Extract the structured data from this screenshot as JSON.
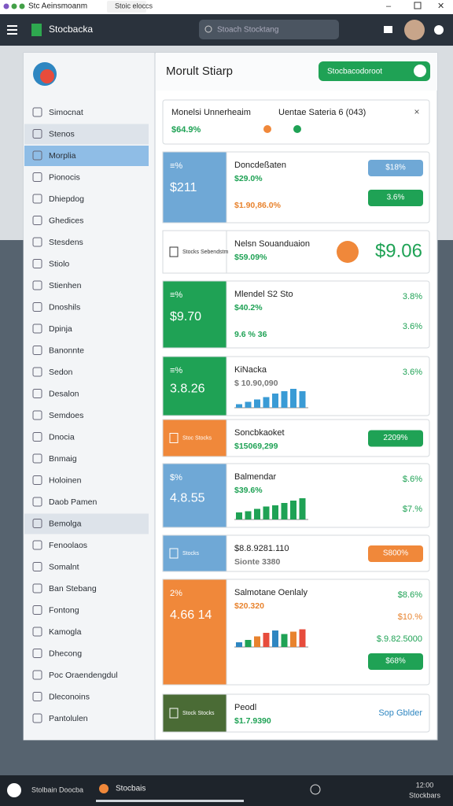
{
  "window": {
    "title": "Stc Aeinsmoanm",
    "tab": "Stoic eloccs"
  },
  "header": {
    "app_name": "Stocbacka",
    "search": "Stoach Stocktang"
  },
  "sidebar": {
    "items": [
      "Simocnat",
      "Stenos",
      "Morplia",
      "Pionocis",
      "Dhiepdog",
      "Ghedices",
      "Stesdens",
      "Stiolo",
      "Stienhen",
      "Dnoshils",
      "Dpinja",
      "Banonnte",
      "Sedon",
      "Desalon",
      "Semdoes",
      "Dnocia",
      "Bnmaig",
      "Holoinen",
      "Daob Pamen",
      "Bemolga",
      "Fenoolaos",
      "Somalnt",
      "Ban Stebang",
      "Fontong",
      "Kamogla",
      "Dhecong",
      "Poc Oraendengdul",
      "Dleconoins",
      "Pantolulen"
    ]
  },
  "panel": {
    "title": "Morult Stiarp",
    "button": "Stocbacodoroot"
  },
  "notice": {
    "title": "Monelsi Unnerheaim",
    "value": "$64.9%",
    "detail": "Uentae Sateria 6 (043)",
    "close": "×"
  },
  "cards": [
    {
      "accent": "#6fa8d6",
      "left": [
        "≡%",
        "$211"
      ],
      "title": "Doncdeßaten",
      "lines": [
        {
          "text": "$29.0%",
          "tone": "green"
        },
        {
          "text": "$1.90,86.0%",
          "tone": "orange"
        }
      ],
      "right": [
        {
          "text": "$18%",
          "style": "pill-blue"
        },
        {
          "text": "3.6%",
          "style": "pill-green"
        }
      ]
    },
    {
      "accent": "#ffffff",
      "left": [
        "Stocks Sebendstm"
      ],
      "title": "Nelsn Souanduaion",
      "lines": [
        {
          "text": "$59.09%",
          "tone": "green"
        }
      ],
      "right": [
        {
          "text": "$9.06",
          "style": "big"
        }
      ]
    },
    {
      "accent": "#1fa255",
      "left": [
        "≡%",
        "$9.70"
      ],
      "title": "Mlendel S2 Sto",
      "lines": [
        {
          "text": "$40.2%",
          "tone": "green"
        },
        {
          "text": "9.6 % 36",
          "tone": "green"
        }
      ],
      "right": [
        {
          "text": "3.8%",
          "style": "green"
        },
        {
          "text": "3.6%",
          "style": "green"
        }
      ]
    },
    {
      "accent": "#1fa255",
      "left": [
        "≡%",
        "3.8.26"
      ],
      "title": "KiNacka",
      "lines": [
        {
          "text": "$ 10.90,090",
          "tone": "gray"
        }
      ],
      "bars": [
        3,
        5,
        7,
        9,
        12,
        14,
        16,
        14
      ],
      "right": [
        {
          "text": "3.6%",
          "style": "green"
        }
      ]
    },
    {
      "accent": "#f0883a",
      "left": [
        "Stoc Stocks"
      ],
      "title": "Soncbkaoket",
      "lines": [
        {
          "text": "$15069,299",
          "tone": "green"
        }
      ],
      "right": [
        {
          "text": "2209%",
          "style": "pill-green"
        }
      ]
    },
    {
      "accent": "#6fa8d6",
      "left": [
        "$%",
        "4.8.55"
      ],
      "title": "Balmendar",
      "lines": [
        {
          "text": "$39.6%",
          "tone": "green"
        }
      ],
      "bars": [
        6,
        7,
        9,
        11,
        12,
        14,
        16,
        18
      ],
      "right": [
        {
          "text": "$.6%",
          "style": "green"
        },
        {
          "text": "$7.%",
          "style": "green"
        }
      ]
    },
    {
      "accent": "#6fa8d6",
      "left": [
        "Stocks"
      ],
      "title": "$8.8.9281.110",
      "lines": [
        {
          "text": "Sionte 3380",
          "tone": "gray"
        }
      ],
      "right": [
        {
          "text": "S800%",
          "style": "pill-orange"
        }
      ]
    },
    {
      "accent": "#f0883a",
      "left": [
        "2%",
        "4.66 14"
      ],
      "title": "Salmotane Oenlaly",
      "lines": [
        {
          "text": "$20.320",
          "tone": "orange"
        }
      ],
      "bars": [
        4,
        6,
        9,
        12,
        14,
        11,
        13,
        15
      ],
      "right": [
        {
          "text": "$8.6%",
          "style": "green"
        },
        {
          "text": "$10.%",
          "style": "orange"
        },
        {
          "text": "$.9.82.5000",
          "style": "green"
        },
        {
          "text": "$68%",
          "style": "pill-green"
        }
      ]
    },
    {
      "accent": "#4a6b35",
      "left": [
        "Stock Stocks"
      ],
      "title": "Peodl",
      "lines": [
        {
          "text": "$1.7.9390",
          "tone": "green"
        }
      ],
      "right": [
        {
          "text": "Sop Gblder",
          "style": "blue"
        }
      ]
    }
  ],
  "taskbar": {
    "left": "Stolbain Doocba",
    "app": "Stocbais",
    "clock": "12:00",
    "date": "Stockbars"
  }
}
